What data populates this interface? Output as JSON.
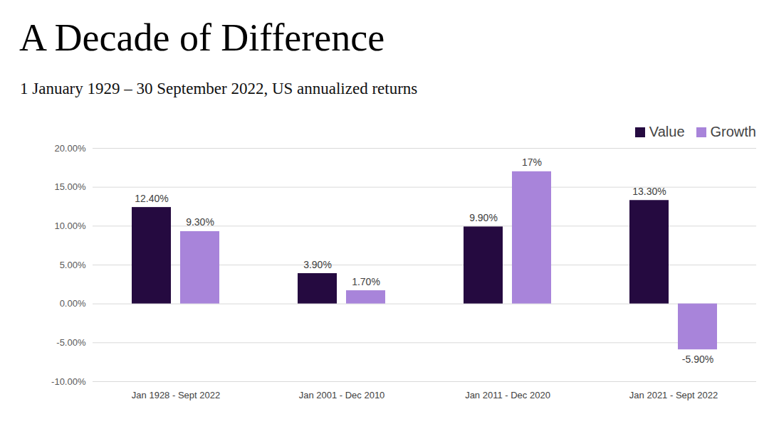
{
  "chart_data": {
    "type": "bar",
    "title": "A Decade of Difference",
    "subtitle": "1 January 1929 – 30 September 2022, US annualized returns",
    "categories": [
      "Jan 1928 - Sept 2022",
      "Jan 2001 - Dec 2010",
      "Jan 2011 - Dec 2020",
      "Jan 2021 - Sept 2022"
    ],
    "series": [
      {
        "name": "Value",
        "color": "#250a40",
        "values": [
          12.4,
          3.9,
          9.9,
          13.3
        ],
        "value_labels": [
          "12.40%",
          "3.90%",
          "9.90%",
          "13.30%"
        ]
      },
      {
        "name": "Growth",
        "color": "#a884da",
        "values": [
          9.3,
          1.7,
          17,
          -5.9
        ],
        "value_labels": [
          "9.30%",
          "1.70%",
          "17%",
          "-5.90%"
        ]
      }
    ],
    "ylim": [
      -10,
      20
    ],
    "yticks": [
      {
        "value": -10,
        "label": "-10.00%"
      },
      {
        "value": -5,
        "label": "-5.00%"
      },
      {
        "value": 0,
        "label": "0.00%"
      },
      {
        "value": 5,
        "label": "5.00%"
      },
      {
        "value": 10,
        "label": "10.00%"
      },
      {
        "value": 15,
        "label": "15.00%"
      },
      {
        "value": 20,
        "label": "20.00%"
      }
    ],
    "grid": true,
    "legend": "top-right",
    "data_labels": true
  }
}
